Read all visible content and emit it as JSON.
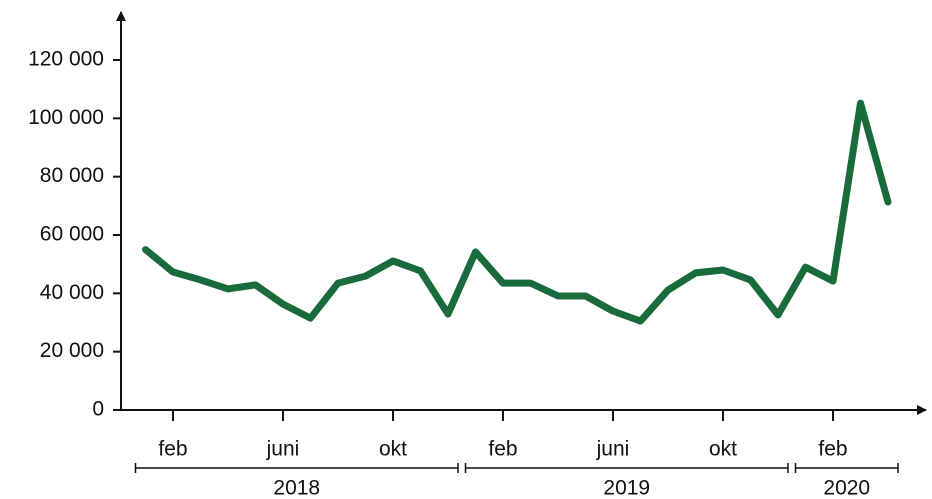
{
  "chart_data": {
    "type": "line",
    "categories": [
      null,
      "feb",
      null,
      null,
      null,
      "juni",
      null,
      null,
      null,
      "okt",
      null,
      null,
      null,
      "feb",
      null,
      null,
      null,
      "juni",
      null,
      null,
      null,
      "okt",
      null,
      null,
      null,
      "feb",
      null,
      null
    ],
    "groups": [
      {
        "label": "2018",
        "size": 12
      },
      {
        "label": "2019",
        "size": 12
      },
      {
        "label": "2020",
        "size": 4
      }
    ],
    "series": [
      {
        "color": "#1a6b3c",
        "values": [
          55000,
          47300,
          44600,
          41500,
          42900,
          36300,
          31500,
          43500,
          45900,
          51100,
          47700,
          32900,
          54200,
          43500,
          43500,
          39100,
          39100,
          33900,
          30500,
          41100,
          47000,
          48000,
          44600,
          32600,
          49000,
          44200,
          105200,
          71300
        ]
      }
    ],
    "ylim": [
      0,
      120000
    ],
    "yticks": [
      0,
      {
        "value": 20000,
        "label": "20 000"
      },
      {
        "value": 40000,
        "label": "40 000"
      },
      {
        "value": 60000,
        "label": "60 000"
      },
      {
        "value": 80000,
        "label": "80 000"
      },
      {
        "value": 100000,
        "label": "100 000"
      },
      {
        "value": 120000,
        "label": "120 000"
      }
    ]
  }
}
